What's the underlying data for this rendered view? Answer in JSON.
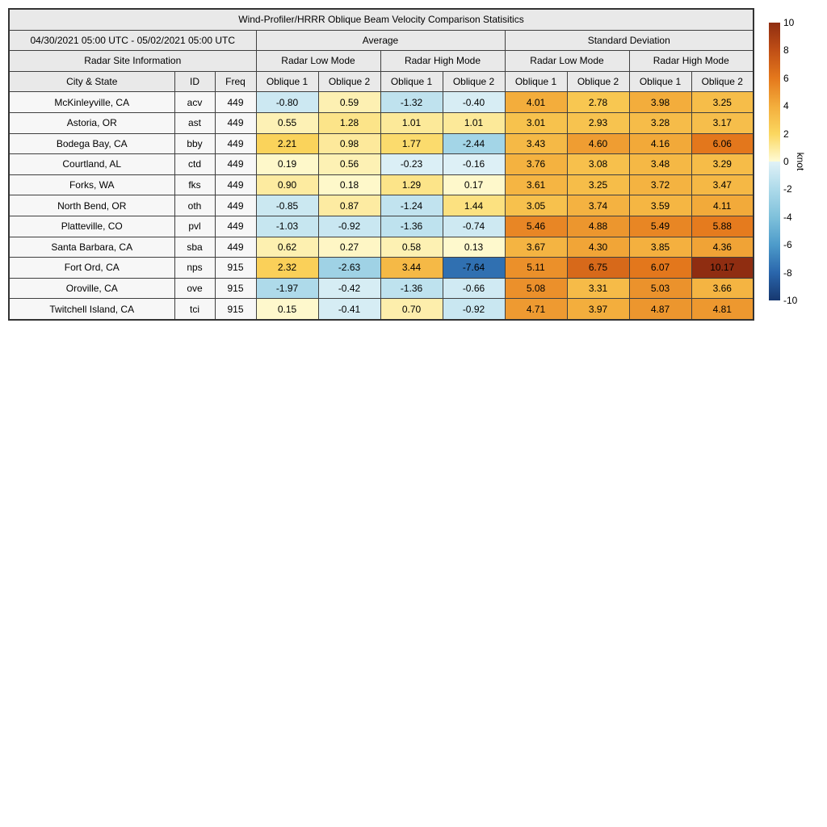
{
  "chart_data": {
    "type": "table",
    "title": "Wind-Profiler/HRRR Oblique Beam Velocity Comparison Statisitics",
    "date_range": "04/30/2021 05:00 UTC - 05/02/2021 05:00 UTC",
    "group_headers": [
      "Average",
      "Standard Deviation"
    ],
    "section_header": "Radar Site Information",
    "mode_headers": [
      "Radar Low Mode",
      "Radar High Mode",
      "Radar Low Mode",
      "Radar High Mode"
    ],
    "column_headers": [
      "City & State",
      "ID",
      "Freq",
      "Oblique 1",
      "Oblique 2",
      "Oblique 1",
      "Oblique 2",
      "Oblique 1",
      "Oblique 2",
      "Oblique 1",
      "Oblique 2"
    ],
    "rows": [
      {
        "city": "McKinleyville, CA",
        "id": "acv",
        "freq": "449",
        "values": [
          -0.8,
          0.59,
          -1.32,
          -0.4,
          4.01,
          2.78,
          3.98,
          3.25
        ]
      },
      {
        "city": "Astoria, OR",
        "id": "ast",
        "freq": "449",
        "values": [
          0.55,
          1.28,
          1.01,
          1.01,
          3.01,
          2.93,
          3.28,
          3.17
        ]
      },
      {
        "city": "Bodega Bay, CA",
        "id": "bby",
        "freq": "449",
        "values": [
          2.21,
          0.98,
          1.77,
          -2.44,
          3.43,
          4.6,
          4.16,
          6.06
        ]
      },
      {
        "city": "Courtland, AL",
        "id": "ctd",
        "freq": "449",
        "values": [
          0.19,
          0.56,
          -0.23,
          -0.16,
          3.76,
          3.08,
          3.48,
          3.29
        ]
      },
      {
        "city": "Forks, WA",
        "id": "fks",
        "freq": "449",
        "values": [
          0.9,
          0.18,
          1.29,
          0.17,
          3.61,
          3.25,
          3.72,
          3.47
        ]
      },
      {
        "city": "North Bend, OR",
        "id": "oth",
        "freq": "449",
        "values": [
          -0.85,
          0.87,
          -1.24,
          1.44,
          3.05,
          3.74,
          3.59,
          4.11
        ]
      },
      {
        "city": "Platteville, CO",
        "id": "pvl",
        "freq": "449",
        "values": [
          -1.03,
          -0.92,
          -1.36,
          -0.74,
          5.46,
          4.88,
          5.49,
          5.88
        ]
      },
      {
        "city": "Santa Barbara, CA",
        "id": "sba",
        "freq": "449",
        "values": [
          0.62,
          0.27,
          0.58,
          0.13,
          3.67,
          4.3,
          3.85,
          4.36
        ]
      },
      {
        "city": "Fort Ord, CA",
        "id": "nps",
        "freq": "915",
        "values": [
          2.32,
          -2.63,
          3.44,
          -7.64,
          5.11,
          6.75,
          6.07,
          10.17
        ]
      },
      {
        "city": "Oroville, CA",
        "id": "ove",
        "freq": "915",
        "values": [
          -1.97,
          -0.42,
          -1.36,
          -0.66,
          5.08,
          3.31,
          5.03,
          3.66
        ]
      },
      {
        "city": "Twitchell Island, CA",
        "id": "tci",
        "freq": "915",
        "values": [
          0.15,
          -0.41,
          0.7,
          -0.92,
          4.71,
          3.97,
          4.87,
          4.81
        ]
      }
    ],
    "value_format_decimals": 2
  },
  "colorbar": {
    "label": "knot",
    "ticks": [
      10,
      8,
      6,
      4,
      2,
      0,
      -2,
      -4,
      -6,
      -8,
      -10
    ],
    "range": [
      -10,
      10
    ],
    "colormap": {
      "negative": [
        [
          -10,
          "#17386f"
        ],
        [
          -8,
          "#2a66ac"
        ],
        [
          -6,
          "#4d9bca"
        ],
        [
          -4,
          "#7fc1db"
        ],
        [
          -2,
          "#addaea"
        ],
        [
          0,
          "#e1f2f7"
        ]
      ],
      "positive": [
        [
          0,
          "#fefbd5"
        ],
        [
          2,
          "#fbd75f"
        ],
        [
          4,
          "#f3ad3c"
        ],
        [
          6,
          "#e4781c"
        ],
        [
          8,
          "#c04f16"
        ],
        [
          10,
          "#8f2d11"
        ]
      ]
    }
  }
}
